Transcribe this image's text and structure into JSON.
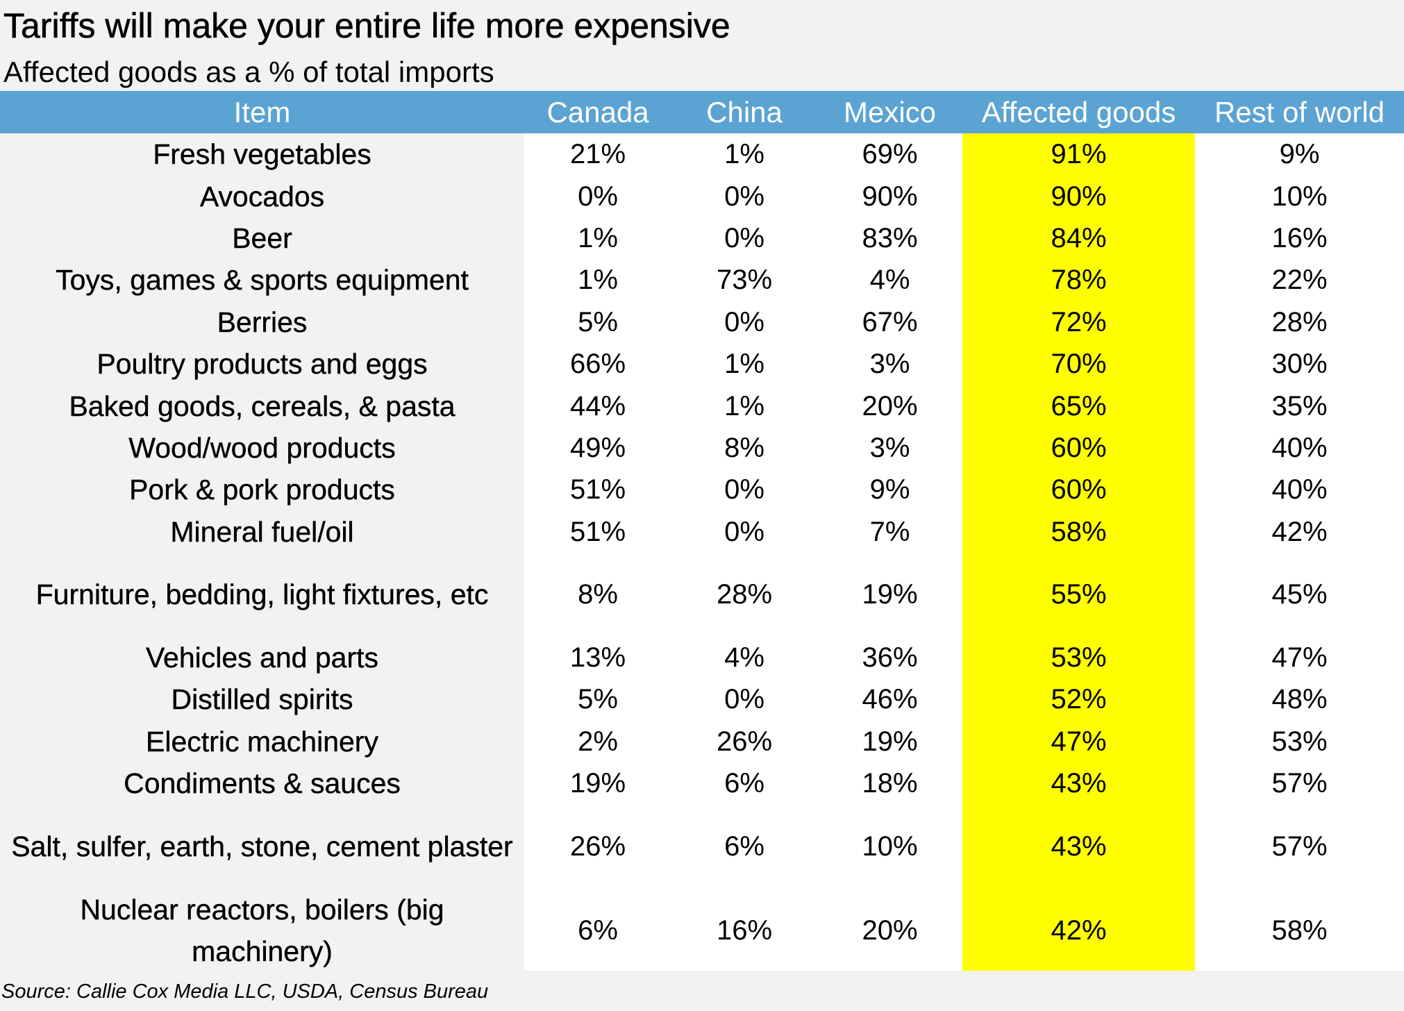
{
  "title": "Tariffs will make your entire life more expensive",
  "subtitle": "Affected goods as a % of total imports",
  "source": "Source: Callie Cox Media LLC, USDA, Census Bureau",
  "colors": {
    "header_bg": "#5ba3d3",
    "header_text": "#ffffff",
    "highlight_column": "#ffff00",
    "page_bg": "#f2f2f2",
    "data_bg": "#ffffff"
  },
  "chart_data": {
    "type": "table",
    "title": "Tariffs will make your entire life more expensive",
    "subtitle": "Affected goods as a % of total imports",
    "columns": [
      "Item",
      "Canada",
      "China",
      "Mexico",
      "Affected goods",
      "Rest of world"
    ],
    "highlighted_column": "Affected goods",
    "rows": [
      {
        "item": "Fresh vegetables",
        "canada": "21%",
        "china": "1%",
        "mexico": "69%",
        "affected": "91%",
        "rest": "9%"
      },
      {
        "item": "Avocados",
        "canada": "0%",
        "china": "0%",
        "mexico": "90%",
        "affected": "90%",
        "rest": "10%"
      },
      {
        "item": "Beer",
        "canada": "1%",
        "china": "0%",
        "mexico": "83%",
        "affected": "84%",
        "rest": "16%"
      },
      {
        "item": "Toys, games & sports equipment",
        "canada": "1%",
        "china": "73%",
        "mexico": "4%",
        "affected": "78%",
        "rest": "22%"
      },
      {
        "item": "Berries",
        "canada": "5%",
        "china": "0%",
        "mexico": "67%",
        "affected": "72%",
        "rest": "28%"
      },
      {
        "item": "Poultry products and eggs",
        "canada": "66%",
        "china": "1%",
        "mexico": "3%",
        "affected": "70%",
        "rest": "30%"
      },
      {
        "item": "Baked goods, cereals, & pasta",
        "canada": "44%",
        "china": "1%",
        "mexico": "20%",
        "affected": "65%",
        "rest": "35%"
      },
      {
        "item": "Wood/wood products",
        "canada": "49%",
        "china": "8%",
        "mexico": "3%",
        "affected": "60%",
        "rest": "40%"
      },
      {
        "item": "Pork & pork products",
        "canada": "51%",
        "china": "0%",
        "mexico": "9%",
        "affected": "60%",
        "rest": "40%"
      },
      {
        "item": "Mineral fuel/oil",
        "canada": "51%",
        "china": "0%",
        "mexico": "7%",
        "affected": "58%",
        "rest": "42%"
      },
      {
        "item": "Furniture, bedding, light fixtures, etc",
        "canada": "8%",
        "china": "28%",
        "mexico": "19%",
        "affected": "55%",
        "rest": "45%"
      },
      {
        "item": "Vehicles and parts",
        "canada": "13%",
        "china": "4%",
        "mexico": "36%",
        "affected": "53%",
        "rest": "47%"
      },
      {
        "item": "Distilled spirits",
        "canada": "5%",
        "china": "0%",
        "mexico": "46%",
        "affected": "52%",
        "rest": "48%"
      },
      {
        "item": "Electric machinery",
        "canada": "2%",
        "china": "26%",
        "mexico": "19%",
        "affected": "47%",
        "rest": "53%"
      },
      {
        "item": "Condiments & sauces",
        "canada": "19%",
        "china": "6%",
        "mexico": "18%",
        "affected": "43%",
        "rest": "57%"
      },
      {
        "item": "Salt, sulfer, earth, stone, cement plaster",
        "canada": "26%",
        "china": "6%",
        "mexico": "10%",
        "affected": "43%",
        "rest": "57%"
      },
      {
        "item": "Nuclear reactors, boilers (big machinery)",
        "canada": "6%",
        "china": "16%",
        "mexico": "20%",
        "affected": "42%",
        "rest": "58%"
      }
    ]
  }
}
